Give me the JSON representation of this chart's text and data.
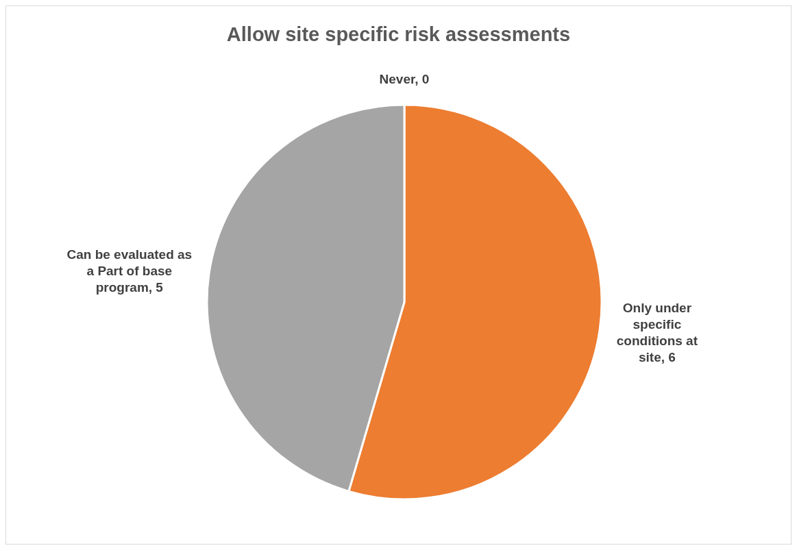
{
  "chart_data": {
    "type": "pie",
    "title": "Allow site specific risk assessments",
    "categories": [
      "Never, 0",
      "Only under specific conditions at site, 6",
      "Can be evaluated as a Part of base program, 5"
    ],
    "values": [
      0,
      6,
      5
    ],
    "colors": [
      "#4472c4",
      "#ed7d31",
      "#a5a5a5"
    ]
  }
}
